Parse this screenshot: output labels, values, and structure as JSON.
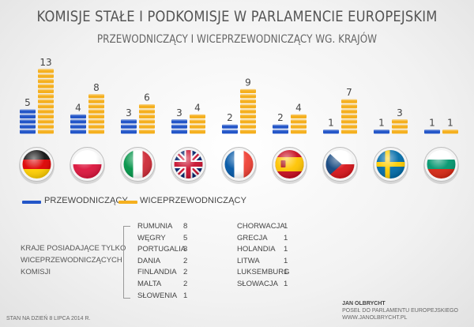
{
  "title": "KOMISJE STAŁE I PODKOMISJE W PARLAMENCIE EUROPEJSKIM",
  "subtitle": "PRZEWODNICZĄCY I WICEPRZEWODNICZĄCY WG. KRAJÓW",
  "colors": {
    "blue": "#2456c8",
    "orange": "#f5b01f"
  },
  "chart_data": {
    "type": "bar",
    "categories": [
      "Niemcy",
      "Polska",
      "Włochy",
      "Wielka Brytania",
      "Francja",
      "Hiszpania",
      "Czechy",
      "Szwecja",
      "Bułgaria"
    ],
    "series": [
      {
        "name": "PRZEWODNICZĄCY",
        "color": "#2456c8",
        "values": [
          5,
          4,
          3,
          3,
          2,
          2,
          1,
          1,
          1
        ]
      },
      {
        "name": "WICEPRZEWODNICZĄCY",
        "color": "#f5b01f",
        "values": [
          13,
          8,
          6,
          4,
          9,
          4,
          7,
          3,
          1
        ]
      }
    ],
    "legend": "bottom-left",
    "grid": false
  },
  "flags": [
    "germany-flag-icon",
    "poland-flag-icon",
    "italy-flag-icon",
    "uk-flag-icon",
    "france-flag-icon",
    "spain-flag-icon",
    "czech-flag-icon",
    "sweden-flag-icon",
    "bulgaria-flag-icon"
  ],
  "legend": {
    "chairs": "PRZEWODNICZĄCY",
    "vice": "WICEPRZEWODNICZĄCY"
  },
  "note": "KRAJE POSIADAJĄCE TYLKO WICEPRZEWODNICZĄCYCH KOMISJI",
  "only_vice_left": [
    {
      "country": "RUMUNIA",
      "value": "8"
    },
    {
      "country": "WĘGRY",
      "value": "5"
    },
    {
      "country": "PORTUGALIA",
      "value": "3"
    },
    {
      "country": "DANIA",
      "value": "2"
    },
    {
      "country": "FINLANDIA",
      "value": "2"
    },
    {
      "country": "MALTA",
      "value": "2"
    },
    {
      "country": "SŁOWENIA",
      "value": "1"
    }
  ],
  "only_vice_right": [
    {
      "country": "CHORWACJA",
      "value": "1"
    },
    {
      "country": "GRECJA",
      "value": "1"
    },
    {
      "country": "HOLANDIA",
      "value": "1"
    },
    {
      "country": "LITWA",
      "value": "1"
    },
    {
      "country": "LUKSEMBURG",
      "value": "1"
    },
    {
      "country": "SŁOWACJA",
      "value": "1"
    }
  ],
  "author": {
    "name": "JAN OLBRYCHT",
    "role": "POSEŁ DO PARLAMENTU EUROPEJSKIEGO",
    "site": "WWW.JANOLBRYCHT.PL"
  },
  "footer": "STAN NA DZIEŃ 8 LIPCA 2014 R."
}
